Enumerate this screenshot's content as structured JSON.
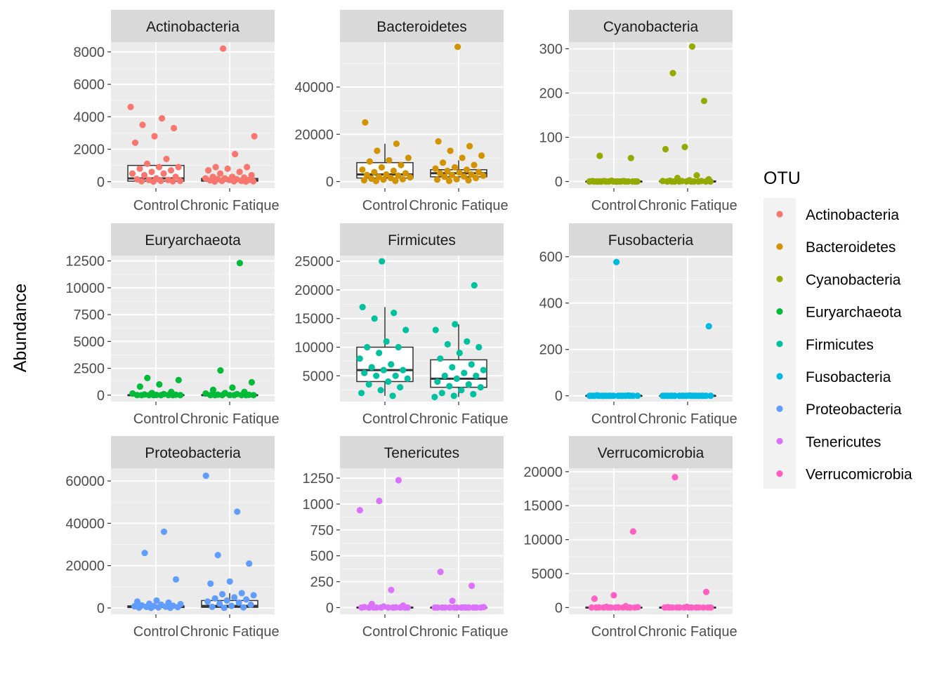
{
  "chart_data": {
    "type": "boxplot-jitter-facets",
    "ylabel": "Abundance",
    "categories": [
      "Control",
      "Chronic Fatique"
    ],
    "legend": {
      "title": "OTU",
      "placement": "right",
      "items": [
        {
          "label": "Actinobacteria",
          "color": "#F8766D"
        },
        {
          "label": "Bacteroidetes",
          "color": "#D39200"
        },
        {
          "label": "Cyanobacteria",
          "color": "#93AA00"
        },
        {
          "label": "Euryarchaeota",
          "color": "#00BA38"
        },
        {
          "label": "Firmicutes",
          "color": "#00C19F"
        },
        {
          "label": "Fusobacteria",
          "color": "#00B9E3"
        },
        {
          "label": "Proteobacteria",
          "color": "#619CFF"
        },
        {
          "label": "Tenericutes",
          "color": "#DB72FB"
        },
        {
          "label": "Verrucomicrobia",
          "color": "#FF61C3"
        }
      ]
    },
    "panels": [
      {
        "title": "Actinobacteria",
        "color": "#F8766D",
        "ylim": [
          -400,
          8600
        ],
        "ticks": [
          0,
          2000,
          4000,
          6000,
          8000
        ],
        "boxes": [
          {
            "group": "Control",
            "q1": 30,
            "median": 200,
            "q3": 1000,
            "lower": 0,
            "upper": 1000
          },
          {
            "group": "Chronic Fatique",
            "q1": 30,
            "median": 100,
            "q3": 200,
            "lower": 0,
            "upper": 200
          }
        ],
        "points": [
          {
            "group": "Control",
            "values": [
              4600,
              3900,
              3500,
              3300,
              2800,
              2400,
              1400,
              1100,
              900,
              900,
              800,
              700,
              600,
              500,
              500,
              400,
              300,
              200,
              150,
              100,
              100,
              50,
              50,
              30,
              20,
              10
            ]
          },
          {
            "group": "Chronic Fatique",
            "values": [
              8200,
              2800,
              1700,
              900,
              900,
              800,
              700,
              600,
              500,
              400,
              300,
              300,
              250,
              200,
              200,
              150,
              150,
              100,
              100,
              80,
              50,
              50,
              30,
              20,
              10,
              10
            ]
          }
        ]
      },
      {
        "title": "Bacteroidetes",
        "color": "#D39200",
        "ylim": [
          -2800,
          59000
        ],
        "ticks": [
          0,
          20000,
          40000
        ],
        "boxes": [
          {
            "group": "Control",
            "q1": 1500,
            "median": 3000,
            "q3": 8000,
            "lower": 0,
            "upper": 16000
          },
          {
            "group": "Chronic Fatique",
            "q1": 2000,
            "median": 3500,
            "q3": 5000,
            "lower": 0,
            "upper": 9000
          }
        ],
        "points": [
          {
            "group": "Control",
            "values": [
              25000,
              16000,
              13000,
              10000,
              9000,
              8500,
              7000,
              6000,
              5000,
              4500,
              4000,
              3500,
              3000,
              2800,
              2500,
              2000,
              1800,
              1500,
              1200,
              1000,
              800,
              500,
              300,
              200
            ]
          },
          {
            "group": "Chronic Fatique",
            "values": [
              57000,
              17000,
              15000,
              13000,
              11000,
              10000,
              8000,
              7000,
              6000,
              5500,
              5000,
              4500,
              4000,
              3800,
              3500,
              3000,
              2800,
              2500,
              2200,
              2000,
              1500,
              1000,
              800,
              500,
              300
            ]
          }
        ]
      },
      {
        "title": "Cyanobacteria",
        "color": "#93AA00",
        "ylim": [
          -15,
          315
        ],
        "ticks": [
          0,
          100,
          200,
          300
        ],
        "boxes": [
          {
            "group": "Control",
            "q1": 0,
            "median": 0,
            "q3": 0,
            "lower": 0,
            "upper": 0
          },
          {
            "group": "Chronic Fatique",
            "q1": 0,
            "median": 0,
            "q3": 1,
            "lower": 0,
            "upper": 1
          }
        ],
        "points": [
          {
            "group": "Control",
            "values": [
              58,
              53,
              2,
              1,
              1,
              1,
              0,
              0,
              0,
              0,
              0,
              0,
              0,
              0,
              0,
              0,
              0,
              0,
              0,
              0,
              0,
              0
            ]
          },
          {
            "group": "Chronic Fatique",
            "values": [
              305,
              245,
              182,
              78,
              73,
              14,
              8,
              5,
              3,
              2,
              1,
              1,
              1,
              0,
              0,
              0,
              0,
              0,
              0,
              0,
              0,
              0,
              0
            ]
          }
        ]
      },
      {
        "title": "Euryarchaeota",
        "color": "#00BA38",
        "ylim": [
          -600,
          13000
        ],
        "ticks": [
          0,
          2500,
          5000,
          7500,
          10000,
          12500
        ],
        "boxes": [
          {
            "group": "Control",
            "q1": 0,
            "median": 0,
            "q3": 20,
            "lower": 0,
            "upper": 40
          },
          {
            "group": "Chronic Fatique",
            "q1": 0,
            "median": 0,
            "q3": 20,
            "lower": 0,
            "upper": 40
          }
        ],
        "points": [
          {
            "group": "Control",
            "values": [
              1600,
              1400,
              1000,
              800,
              300,
              200,
              150,
              100,
              60,
              40,
              20,
              10,
              5,
              0,
              0,
              0,
              0,
              0,
              0
            ]
          },
          {
            "group": "Chronic Fatique",
            "values": [
              12300,
              2300,
              1200,
              700,
              500,
              300,
              200,
              150,
              100,
              50,
              30,
              10,
              0,
              0,
              0,
              0,
              0,
              0,
              0
            ]
          }
        ]
      },
      {
        "title": "Firmicutes",
        "color": "#00C19F",
        "ylim": [
          500,
          26000
        ],
        "ticks": [
          5000,
          10000,
          15000,
          20000,
          25000
        ],
        "boxes": [
          {
            "group": "Control",
            "q1": 4000,
            "median": 6000,
            "q3": 10000,
            "lower": 1500,
            "upper": 17000
          },
          {
            "group": "Chronic Fatique",
            "q1": 3000,
            "median": 4500,
            "q3": 7800,
            "lower": 1300,
            "upper": 14000
          }
        ],
        "points": [
          {
            "group": "Control",
            "values": [
              25000,
              17000,
              16000,
              15000,
              13000,
              11000,
              10000,
              10000,
              9000,
              8000,
              7000,
              6500,
              6000,
              6000,
              5500,
              5000,
              5000,
              4500,
              4000,
              3500,
              3000,
              2500,
              2000,
              1500
            ]
          },
          {
            "group": "Chronic Fatique",
            "values": [
              20800,
              14000,
              13000,
              11000,
              10500,
              10000,
              9000,
              8000,
              7000,
              6500,
              6000,
              5500,
              5000,
              5000,
              4500,
              4000,
              3500,
              3200,
              3000,
              2500,
              2000,
              1800,
              1500,
              1300
            ]
          }
        ]
      },
      {
        "title": "Fusobacteria",
        "color": "#00B9E3",
        "ylim": [
          -25,
          605
        ],
        "ticks": [
          0,
          200,
          400,
          600
        ],
        "boxes": [
          {
            "group": "Control",
            "q1": 0,
            "median": 0,
            "q3": 0,
            "lower": 0,
            "upper": 0
          },
          {
            "group": "Chronic Fatique",
            "q1": 0,
            "median": 0,
            "q3": 0,
            "lower": 0,
            "upper": 0
          }
        ],
        "points": [
          {
            "group": "Control",
            "values": [
              577,
              2,
              1,
              0,
              0,
              0,
              0,
              0,
              0,
              0,
              0,
              0,
              0,
              0,
              0,
              0,
              0,
              0,
              0,
              0
            ]
          },
          {
            "group": "Chronic Fatique",
            "values": [
              300,
              1,
              0,
              0,
              0,
              0,
              0,
              0,
              0,
              0,
              0,
              0,
              0,
              0,
              0,
              0,
              0,
              0,
              0,
              0
            ]
          }
        ]
      },
      {
        "title": "Proteobacteria",
        "color": "#619CFF",
        "ylim": [
          -3000,
          66000
        ],
        "ticks": [
          0,
          20000,
          40000,
          60000
        ],
        "boxes": [
          {
            "group": "Control",
            "q1": 200,
            "median": 500,
            "q3": 1000,
            "lower": 0,
            "upper": 1500
          },
          {
            "group": "Chronic Fatique",
            "q1": 300,
            "median": 1000,
            "q3": 3500,
            "lower": 0,
            "upper": 7000
          }
        ],
        "points": [
          {
            "group": "Control",
            "values": [
              36000,
              26000,
              13500,
              3500,
              3000,
              2500,
              2000,
              1800,
              1500,
              1200,
              1000,
              900,
              800,
              600,
              500,
              400,
              300,
              200,
              100,
              50
            ]
          },
          {
            "group": "Chronic Fatique",
            "values": [
              62500,
              45500,
              25000,
              21000,
              12500,
              11500,
              7000,
              6500,
              6000,
              5000,
              4500,
              4000,
              3500,
              3000,
              2500,
              2000,
              1500,
              1000,
              500,
              300,
              100
            ]
          }
        ]
      },
      {
        "title": "Tenericutes",
        "color": "#DB72FB",
        "ylim": [
          -65,
          1345
        ],
        "ticks": [
          0,
          250,
          500,
          750,
          1000,
          1250
        ],
        "boxes": [
          {
            "group": "Control",
            "q1": 0,
            "median": 0,
            "q3": 2,
            "lower": 0,
            "upper": 4
          },
          {
            "group": "Chronic Fatique",
            "q1": 0,
            "median": 0,
            "q3": 1,
            "lower": 0,
            "upper": 2
          }
        ],
        "points": [
          {
            "group": "Control",
            "values": [
              1230,
              1030,
              940,
              170,
              35,
              20,
              10,
              5,
              2,
              1,
              0,
              0,
              0,
              0,
              0,
              0,
              0,
              0,
              0
            ]
          },
          {
            "group": "Chronic Fatique",
            "values": [
              345,
              210,
              65,
              5,
              2,
              1,
              0,
              0,
              0,
              0,
              0,
              0,
              0,
              0,
              0,
              0,
              0,
              0
            ]
          }
        ]
      },
      {
        "title": "Verrucomicrobia",
        "color": "#FF61C3",
        "ylim": [
          -1000,
          20500
        ],
        "ticks": [
          0,
          5000,
          10000,
          15000,
          20000
        ],
        "boxes": [
          {
            "group": "Control",
            "q1": 0,
            "median": 0,
            "q3": 10,
            "lower": 0,
            "upper": 20
          },
          {
            "group": "Chronic Fatique",
            "q1": 0,
            "median": 0,
            "q3": 10,
            "lower": 0,
            "upper": 20
          }
        ],
        "points": [
          {
            "group": "Control",
            "values": [
              11200,
              1800,
              1300,
              200,
              100,
              50,
              20,
              10,
              0,
              0,
              0,
              0,
              0,
              0,
              0,
              0,
              0,
              0
            ]
          },
          {
            "group": "Chronic Fatique",
            "values": [
              19200,
              2300,
              100,
              50,
              10,
              0,
              0,
              0,
              0,
              0,
              0,
              0,
              0,
              0,
              0,
              0,
              0
            ]
          }
        ]
      }
    ]
  }
}
